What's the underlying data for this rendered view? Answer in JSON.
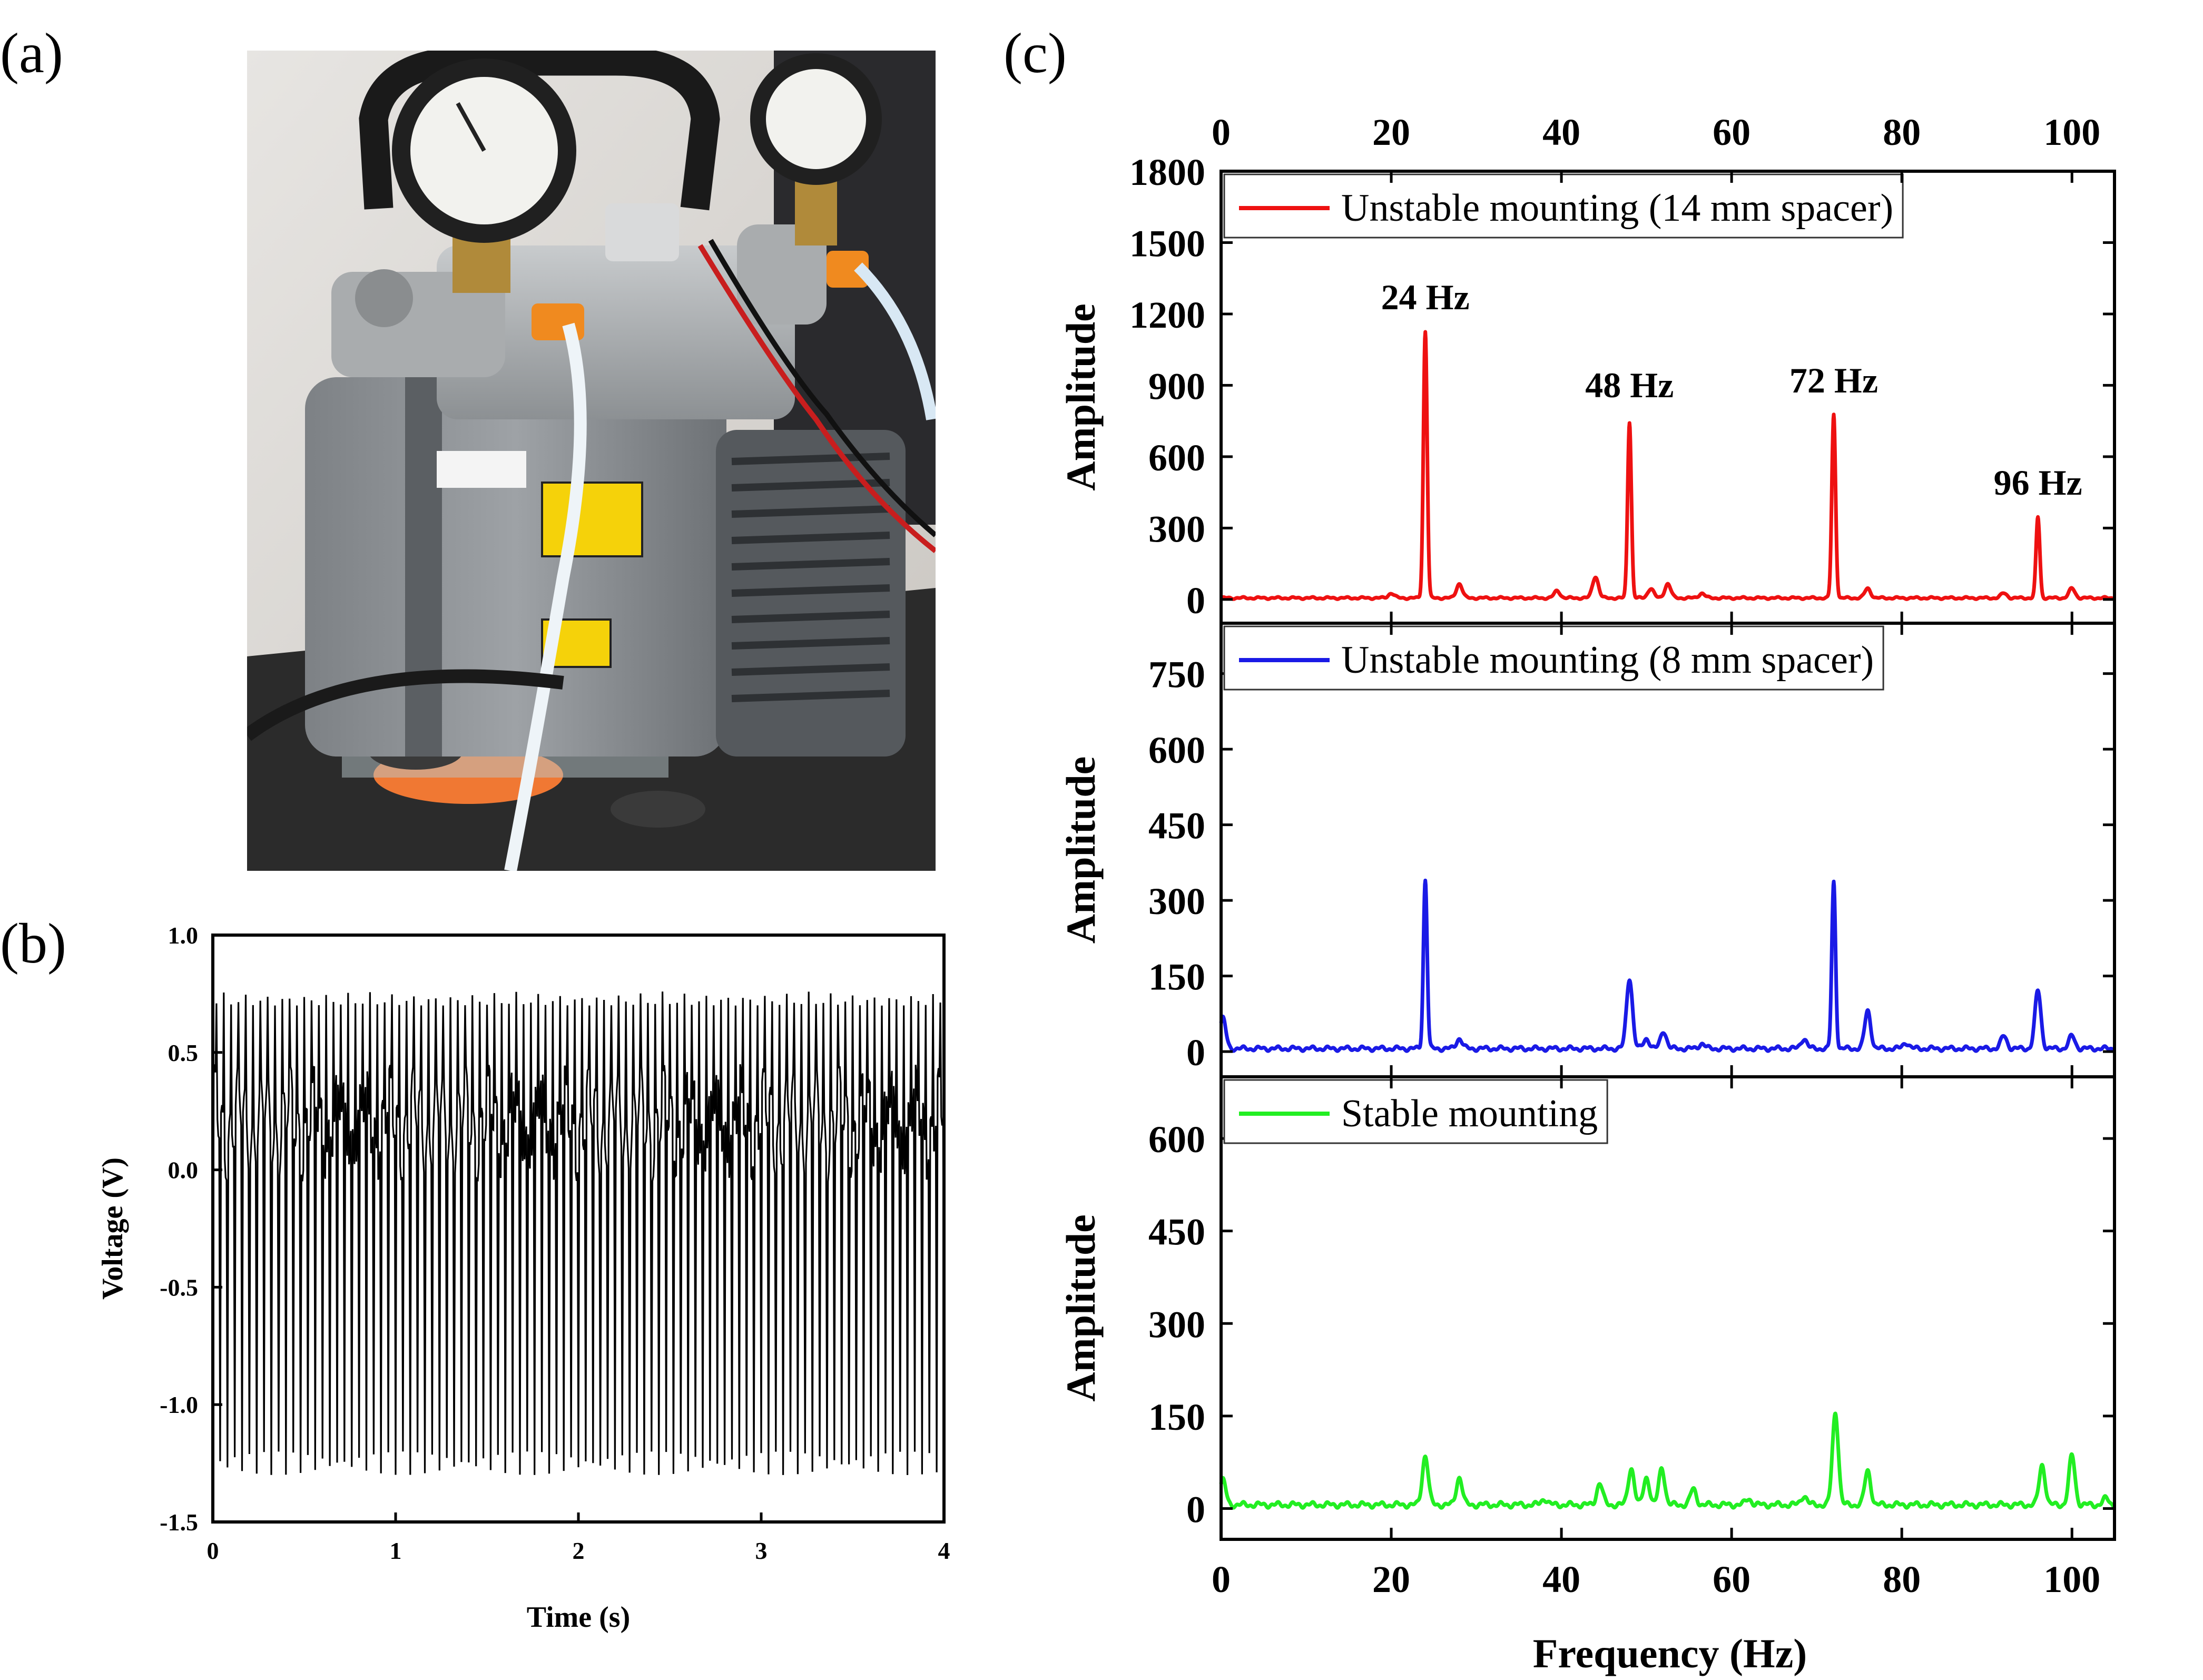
{
  "panels": {
    "a": "(a)",
    "b": "(b)",
    "c": "(c)"
  },
  "photo": {
    "subject": "vacuum-pump-photo"
  },
  "colors": {
    "red": "#ee1111",
    "blue": "#1a1ae6",
    "green": "#22ee22",
    "black": "#000000"
  },
  "chart_data": [
    {
      "id": "b",
      "type": "line",
      "xlabel": "Time (s)",
      "ylabel": "Voltage (V)",
      "xlim": [
        0,
        4
      ],
      "ylim": [
        -1.5,
        1.0
      ],
      "xticks": [
        "0",
        "1",
        "2",
        "3",
        "4"
      ],
      "yticks": [
        "-1.5",
        "-1.0",
        "-0.5",
        "0.0",
        "0.5",
        "1.0"
      ],
      "signal": {
        "fundamental_hz": 24,
        "sample_period_s": 0.01,
        "min_peak": -1.25,
        "max_peak": 0.76,
        "band_low": -0.05,
        "band_high": 0.45
      },
      "series": [
        {
          "color": "#000000"
        }
      ]
    },
    {
      "id": "c",
      "type": "line",
      "xlabel": "Frequency (Hz)",
      "xlim": [
        0,
        105
      ],
      "xticks": [
        "0",
        "20",
        "40",
        "60",
        "80",
        "100"
      ],
      "subplots": [
        {
          "legend": "Unstable mounting (14 mm spacer)",
          "color": "#ee1111",
          "ylabel": "Amplitude",
          "ylim": [
            -100,
            1800
          ],
          "yticks": [
            "0",
            "300",
            "600",
            "900",
            "1200",
            "1500",
            "1800"
          ],
          "annotations": [
            "24 Hz",
            "48 Hz",
            "72 Hz",
            "96 Hz"
          ],
          "annotation_positions": [
            [
              24,
              1220
            ],
            [
              48,
              850
            ],
            [
              72,
              870
            ],
            [
              96,
              440
            ]
          ],
          "peaks": [
            [
              20,
              20
            ],
            [
              24,
              1120
            ],
            [
              28,
              60
            ],
            [
              39.5,
              30
            ],
            [
              44,
              90
            ],
            [
              48,
              740
            ],
            [
              50.5,
              40
            ],
            [
              52.5,
              60
            ],
            [
              56.5,
              20
            ],
            [
              72,
              770
            ],
            [
              76,
              40
            ],
            [
              92,
              20
            ],
            [
              96,
              340
            ],
            [
              100,
              40
            ]
          ]
        },
        {
          "legend": "Unstable mounting (8 mm spacer)",
          "color": "#1a1ae6",
          "ylabel": "Amplitude",
          "ylim": [
            -50,
            850
          ],
          "yticks": [
            "0",
            "150",
            "300",
            "450",
            "600",
            "750"
          ],
          "annotations": [],
          "annotation_positions": [],
          "peaks": [
            [
              0.2,
              60
            ],
            [
              24,
              335
            ],
            [
              28,
              20
            ],
            [
              48,
              140
            ],
            [
              50,
              20
            ],
            [
              52,
              35
            ],
            [
              56.5,
              10
            ],
            [
              68.5,
              20
            ],
            [
              72,
              330
            ],
            [
              76,
              75
            ],
            [
              80.5,
              12
            ],
            [
              92,
              25
            ],
            [
              96,
              115
            ],
            [
              100,
              25
            ]
          ]
        },
        {
          "legend": "Stable mounting",
          "color": "#22ee22",
          "ylabel": "Amplitude",
          "ylim": [
            -50,
            700
          ],
          "yticks": [
            "0",
            "150",
            "300",
            "450",
            "600"
          ],
          "annotations": [],
          "annotation_positions": [],
          "peaks": [
            [
              0.2,
              40
            ],
            [
              24,
              80
            ],
            [
              28,
              45
            ],
            [
              38,
              10
            ],
            [
              44.5,
              35
            ],
            [
              48.2,
              60
            ],
            [
              50,
              45
            ],
            [
              51.8,
              60
            ],
            [
              55.5,
              25
            ],
            [
              62,
              10
            ],
            [
              68.5,
              15
            ],
            [
              72.2,
              150
            ],
            [
              76,
              55
            ],
            [
              96.5,
              65
            ],
            [
              100,
              80
            ],
            [
              104,
              10
            ]
          ]
        }
      ]
    }
  ]
}
